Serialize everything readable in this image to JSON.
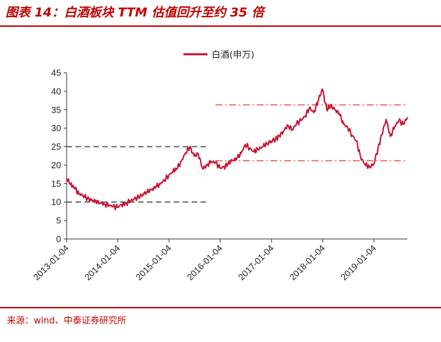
{
  "header": {
    "title": "图表 14：白酒板块 TTM 估值回升至约 35 倍"
  },
  "footer": {
    "source": "来源：wind、中泰证券研究所"
  },
  "colors": {
    "accent": "#c00000",
    "series": "#c8102e",
    "reference_red": "#e8361e",
    "reference_gray": "#555555"
  },
  "chart_data": {
    "type": "line",
    "legend": "top-center",
    "ylim": [
      0,
      45
    ],
    "yticks": [
      0,
      5,
      10,
      15,
      20,
      25,
      30,
      35,
      40,
      45
    ],
    "xlim": [
      "2013-01-04",
      "2019-08-30"
    ],
    "xticks": [
      "2013-01-04",
      "2014-01-04",
      "2015-01-04",
      "2016-01-04",
      "2017-01-04",
      "2018-01-04",
      "2019-01-04"
    ],
    "series": [
      {
        "name": "白酒(申万)",
        "points": [
          [
            "2013-01-04",
            16.5
          ],
          [
            "2013-02-01",
            14.8
          ],
          [
            "2013-03-01",
            13.8
          ],
          [
            "2013-04-01",
            12.3
          ],
          [
            "2013-05-01",
            11.8
          ],
          [
            "2013-06-01",
            11.0
          ],
          [
            "2013-07-01",
            10.4
          ],
          [
            "2013-08-01",
            10.2
          ],
          [
            "2013-09-01",
            9.8
          ],
          [
            "2013-10-01",
            9.4
          ],
          [
            "2013-11-01",
            9.2
          ],
          [
            "2013-12-01",
            8.8
          ],
          [
            "2014-01-01",
            8.6
          ],
          [
            "2014-02-01",
            9.3
          ],
          [
            "2014-03-01",
            9.6
          ],
          [
            "2014-04-01",
            10.3
          ],
          [
            "2014-05-01",
            10.8
          ],
          [
            "2014-06-01",
            11.3
          ],
          [
            "2014-07-01",
            12.1
          ],
          [
            "2014-08-01",
            12.8
          ],
          [
            "2014-09-01",
            13.3
          ],
          [
            "2014-10-01",
            14.1
          ],
          [
            "2014-11-01",
            14.8
          ],
          [
            "2014-12-01",
            16.0
          ],
          [
            "2015-01-01",
            17.2
          ],
          [
            "2015-02-01",
            18.3
          ],
          [
            "2015-03-01",
            19.0
          ],
          [
            "2015-04-01",
            21.0
          ],
          [
            "2015-05-01",
            23.3
          ],
          [
            "2015-06-01",
            25.0
          ],
          [
            "2015-07-01",
            22.5
          ],
          [
            "2015-08-01",
            23.0
          ],
          [
            "2015-09-01",
            19.0
          ],
          [
            "2015-10-01",
            20.0
          ],
          [
            "2015-11-01",
            21.0
          ],
          [
            "2015-12-01",
            20.7
          ],
          [
            "2016-01-01",
            19.2
          ],
          [
            "2016-02-01",
            19.5
          ],
          [
            "2016-03-01",
            20.5
          ],
          [
            "2016-04-01",
            21.3
          ],
          [
            "2016-05-01",
            21.8
          ],
          [
            "2016-06-01",
            23.2
          ],
          [
            "2016-07-01",
            25.6
          ],
          [
            "2016-08-01",
            24.6
          ],
          [
            "2016-09-01",
            23.6
          ],
          [
            "2016-10-01",
            24.3
          ],
          [
            "2016-11-01",
            25.0
          ],
          [
            "2016-12-01",
            25.8
          ],
          [
            "2017-01-01",
            26.5
          ],
          [
            "2017-02-01",
            27.0
          ],
          [
            "2017-03-01",
            27.9
          ],
          [
            "2017-04-01",
            29.3
          ],
          [
            "2017-05-01",
            30.8
          ],
          [
            "2017-06-01",
            29.6
          ],
          [
            "2017-07-01",
            31.2
          ],
          [
            "2017-08-01",
            32.1
          ],
          [
            "2017-09-01",
            33.3
          ],
          [
            "2017-10-01",
            35.6
          ],
          [
            "2017-11-01",
            34.2
          ],
          [
            "2017-12-01",
            37.3
          ],
          [
            "2018-01-01",
            40.6
          ],
          [
            "2018-02-01",
            35.1
          ],
          [
            "2018-03-01",
            36.1
          ],
          [
            "2018-04-01",
            35.0
          ],
          [
            "2018-05-01",
            34.0
          ],
          [
            "2018-06-01",
            31.1
          ],
          [
            "2018-07-01",
            30.2
          ],
          [
            "2018-08-01",
            28.1
          ],
          [
            "2018-09-01",
            26.5
          ],
          [
            "2018-10-01",
            22.1
          ],
          [
            "2018-11-01",
            20.2
          ],
          [
            "2018-12-01",
            19.5
          ],
          [
            "2019-01-01",
            20.2
          ],
          [
            "2019-02-01",
            24.3
          ],
          [
            "2019-03-01",
            28.3
          ],
          [
            "2019-04-01",
            32.4
          ],
          [
            "2019-05-01",
            27.8
          ],
          [
            "2019-06-01",
            30.5
          ],
          [
            "2019-07-01",
            32.1
          ],
          [
            "2019-08-01",
            31.0
          ],
          [
            "2019-08-30",
            33.0
          ]
        ]
      }
    ],
    "reference_lines": [
      {
        "y": 25,
        "from": "2013-01-04",
        "to": "2015-09-25",
        "style": "dashed",
        "color": "gray"
      },
      {
        "y": 10,
        "from": "2013-01-04",
        "to": "2015-09-25",
        "style": "dashed",
        "color": "gray"
      },
      {
        "y": 36.3,
        "from": "2015-12-01",
        "to": "2019-08-30",
        "style": "dash-dot",
        "color": "red"
      },
      {
        "y": 21.2,
        "from": "2015-12-01",
        "to": "2019-08-30",
        "style": "dash-dot",
        "color": "red"
      }
    ]
  }
}
